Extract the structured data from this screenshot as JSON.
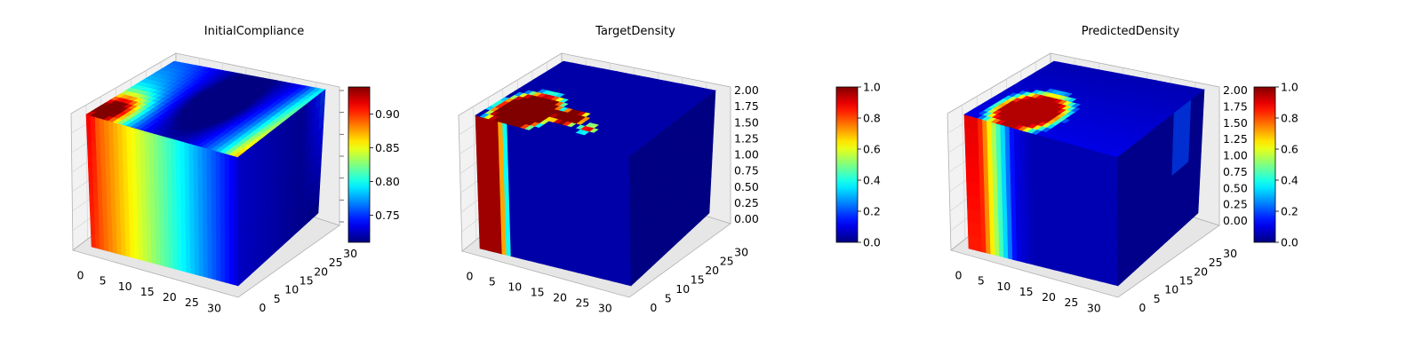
{
  "chart_data": [
    {
      "type": "voxel3d",
      "title": "InitialCompliance",
      "x_ticks": [
        "0",
        "5",
        "10",
        "15",
        "20",
        "25",
        "30"
      ],
      "y_ticks": [
        "0",
        "5",
        "10",
        "15",
        "20",
        "25",
        "30"
      ],
      "z_ticks": [],
      "colorbar_ticks": [
        "0.75",
        "0.80",
        "0.85",
        "0.90"
      ],
      "colorbar_range": [
        0.71,
        0.94
      ],
      "colormap": "jet",
      "field": "compliance",
      "grid": true
    },
    {
      "type": "voxel3d",
      "title": "TargetDensity",
      "x_ticks": [
        "0",
        "5",
        "10",
        "15",
        "20",
        "25",
        "30"
      ],
      "y_ticks": [
        "0",
        "5",
        "10",
        "15",
        "20",
        "25",
        "30"
      ],
      "z_ticks": [
        "0.00",
        "0.25",
        "0.50",
        "0.75",
        "1.00",
        "1.25",
        "1.50",
        "1.75",
        "2.00"
      ],
      "colorbar_ticks": [
        "0.0",
        "0.2",
        "0.4",
        "0.6",
        "0.8",
        "1.0"
      ],
      "colorbar_range": [
        0.0,
        1.0
      ],
      "colormap": "jet",
      "field": "target",
      "grid": true
    },
    {
      "type": "voxel3d",
      "title": "PredictedDensity",
      "x_ticks": [
        "0",
        "5",
        "10",
        "15",
        "20",
        "25",
        "30"
      ],
      "y_ticks": [
        "0",
        "5",
        "10",
        "15",
        "20",
        "25",
        "30"
      ],
      "z_ticks": [
        "0.00",
        "0.25",
        "0.50",
        "0.75",
        "1.00",
        "1.25",
        "1.50",
        "1.75",
        "2.00"
      ],
      "colorbar_ticks": [
        "0.0",
        "0.2",
        "0.4",
        "0.6",
        "0.8",
        "1.0"
      ],
      "colorbar_range": [
        0.0,
        1.0
      ],
      "colormap": "jet",
      "field": "predicted",
      "grid": true
    }
  ]
}
